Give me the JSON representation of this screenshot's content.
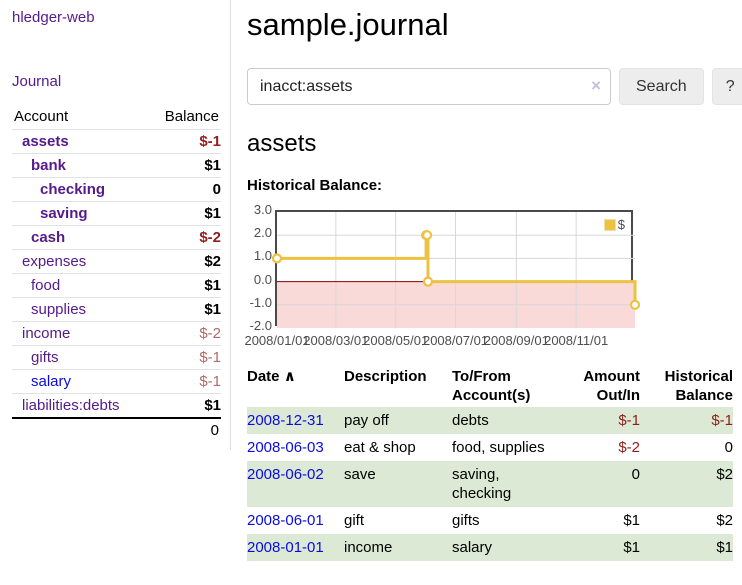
{
  "app": {
    "brand": "hledger-web"
  },
  "sidebar": {
    "journal_link": "Journal",
    "accounts": {
      "col_account": "Account",
      "col_balance": "Balance",
      "rows": [
        {
          "name": "assets",
          "indent": 1,
          "bold": true,
          "link": "purple",
          "balance": "$-1",
          "neg": "strong"
        },
        {
          "name": "bank",
          "indent": 2,
          "bold": true,
          "link": "purple",
          "balance": "$1",
          "neg": "none"
        },
        {
          "name": "checking",
          "indent": 3,
          "bold": true,
          "link": "purple",
          "balance": "0",
          "neg": "none"
        },
        {
          "name": "saving",
          "indent": 3,
          "bold": true,
          "link": "purple",
          "balance": "$1",
          "neg": "none"
        },
        {
          "name": "cash",
          "indent": 2,
          "bold": true,
          "link": "purple",
          "balance": "$-2",
          "neg": "strong"
        },
        {
          "name": "expenses",
          "indent": 1,
          "bold": false,
          "link": "purple",
          "balance": "$2",
          "neg": "none"
        },
        {
          "name": "food",
          "indent": 2,
          "bold": false,
          "link": "purple",
          "balance": "$1",
          "neg": "none"
        },
        {
          "name": "supplies",
          "indent": 2,
          "bold": false,
          "link": "purple",
          "balance": "$1",
          "neg": "none"
        },
        {
          "name": "income",
          "indent": 1,
          "bold": false,
          "link": "purple",
          "balance": "$-2",
          "neg": "soft"
        },
        {
          "name": "gifts",
          "indent": 2,
          "bold": false,
          "link": "purple",
          "balance": "$-1",
          "neg": "soft"
        },
        {
          "name": "salary",
          "indent": 2,
          "bold": false,
          "link": "blue",
          "balance": "$-1",
          "neg": "soft"
        },
        {
          "name": "liabilities:debts",
          "indent": 1,
          "bold": false,
          "link": "purple",
          "balance": "$1",
          "neg": "none"
        }
      ],
      "total": "0"
    }
  },
  "main": {
    "title": "sample.journal",
    "search": {
      "value": "inacct:assets",
      "clear_icon": "×",
      "search_button": "Search",
      "help_button": "?"
    },
    "account_heading": "assets",
    "chart_heading": "Historical Balance:"
  },
  "chart_data": {
    "type": "line",
    "step": true,
    "title": "Historical Balance",
    "x_range": [
      "2008-01-01",
      "2008-12-31"
    ],
    "ylim": [
      -2,
      3
    ],
    "grid": true,
    "legend_position": "top-right",
    "yticks": [
      {
        "label": "3.0",
        "value": 3
      },
      {
        "label": "2.0",
        "value": 2
      },
      {
        "label": "1.0",
        "value": 1
      },
      {
        "label": "0.0",
        "value": 0
      },
      {
        "label": "-1.0",
        "value": -1
      },
      {
        "label": "-2.0",
        "value": -2
      }
    ],
    "xticks": [
      {
        "label": "2008/01/01",
        "date": "2008-01-01"
      },
      {
        "label": "2008/03/01",
        "date": "2008-03-01"
      },
      {
        "label": "2008/05/01",
        "date": "2008-05-01"
      },
      {
        "label": "2008/07/01",
        "date": "2008-07-01"
      },
      {
        "label": "2008/09/01",
        "date": "2008-09-01"
      },
      {
        "label": "2008/11/01",
        "date": "2008-11-01"
      }
    ],
    "series": [
      {
        "name": "$",
        "color": "#edc240",
        "points": [
          {
            "date": "2008-01-01",
            "value": 1
          },
          {
            "date": "2008-06-01",
            "value": 2
          },
          {
            "date": "2008-06-02",
            "value": 2
          },
          {
            "date": "2008-06-03",
            "value": 0
          },
          {
            "date": "2008-12-31",
            "value": -1
          }
        ]
      }
    ],
    "negative_region_color": "#fad9d9",
    "zero_line_color": "#8b0000",
    "grid_color": "#d8d8d8"
  },
  "register": {
    "headers": {
      "date": "Date",
      "sort_icon": "∧",
      "description": "Description",
      "accounts": "To/From Account(s)",
      "amount": "Amount Out/In",
      "balance": "Historical Balance"
    },
    "rows": [
      {
        "date": "2008-12-31",
        "description": "pay off",
        "accounts": "debts",
        "amount": "$-1",
        "amount_neg": true,
        "balance": "$-1",
        "balance_neg": true
      },
      {
        "date": "2008-06-03",
        "description": "eat & shop",
        "accounts": "food, supplies",
        "amount": "$-2",
        "amount_neg": true,
        "balance": "0",
        "balance_neg": false
      },
      {
        "date": "2008-06-02",
        "description": "save",
        "accounts": "saving, checking",
        "amount": "0",
        "amount_neg": false,
        "balance": "$2",
        "balance_neg": false
      },
      {
        "date": "2008-06-01",
        "description": "gift",
        "accounts": "gifts",
        "amount": "$1",
        "amount_neg": false,
        "balance": "$2",
        "balance_neg": false
      },
      {
        "date": "2008-01-01",
        "description": "income",
        "accounts": "salary",
        "amount": "$1",
        "amount_neg": false,
        "balance": "$1",
        "balance_neg": false
      }
    ]
  },
  "colors": {
    "link_purple": "#551a8b",
    "link_blue": "#0b0bdc",
    "negative_strong": "#911f1f",
    "negative_soft": "#b26a66",
    "row_green": "#dcead5",
    "series_yellow": "#edc240"
  }
}
